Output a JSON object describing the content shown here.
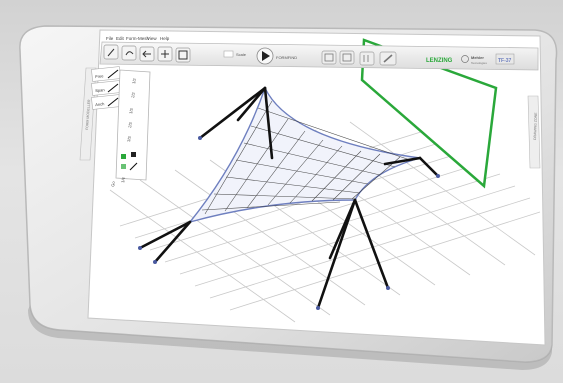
{
  "menu": {
    "items": [
      "File",
      "Edit",
      "Form-Mesh",
      "View",
      "Help"
    ]
  },
  "toolbar": {
    "left_tools": [
      "pointer-icon",
      "undo-icon",
      "arrow-left-icon",
      "arrows-icon",
      "fit-icon"
    ],
    "field_label": "Scale",
    "play_label": "FORMFIND",
    "right_tools": [
      "camera-icon",
      "print-icon",
      "columns-icon",
      "pen-icon"
    ]
  },
  "brand": {
    "name": "LENZING",
    "partner": "Mehler",
    "partner_sub": "Texnologies",
    "badge": "TF-37"
  },
  "left_panel": {
    "side_label": "FORM MODELLER",
    "cards": [
      "Free",
      "Span",
      "Anch"
    ],
    "palette_items": [
      "1/2",
      "2/2",
      "1/3",
      "2/3",
      "3/3",
      "1/4"
    ],
    "footer": "Go"
  },
  "right_panel": {
    "side_label": "DRAWING ZONE"
  },
  "colors": {
    "accent_green": "#2aa83a",
    "mesh_blue": "#6e7fbf",
    "mast_black": "#111111",
    "grid_gray": "#c9c9c9"
  }
}
